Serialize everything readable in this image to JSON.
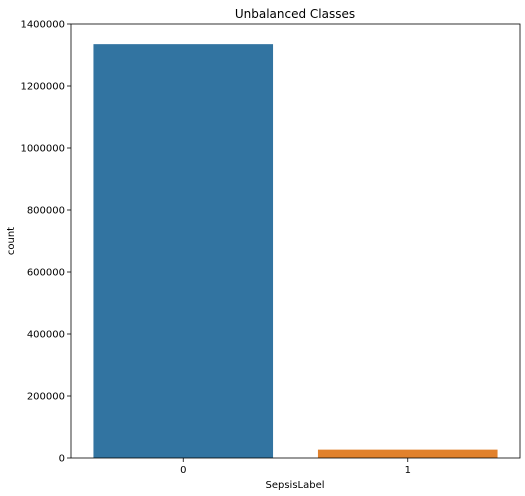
{
  "chart_data": {
    "type": "bar",
    "title": "Unbalanced Classes",
    "xlabel": "SepsisLabel",
    "ylabel": "count",
    "categories": [
      "0",
      "1"
    ],
    "values": [
      1335000,
      27000
    ],
    "colors": [
      "#3274a1",
      "#e1812c"
    ],
    "ylim": [
      0,
      1400000
    ],
    "yticks": [
      0,
      200000,
      400000,
      600000,
      800000,
      1000000,
      1200000,
      1400000
    ],
    "ytick_labels": [
      "0",
      "200000",
      "400000",
      "600000",
      "800000",
      "1000000",
      "1200000",
      "1400000"
    ],
    "grid": false
  }
}
